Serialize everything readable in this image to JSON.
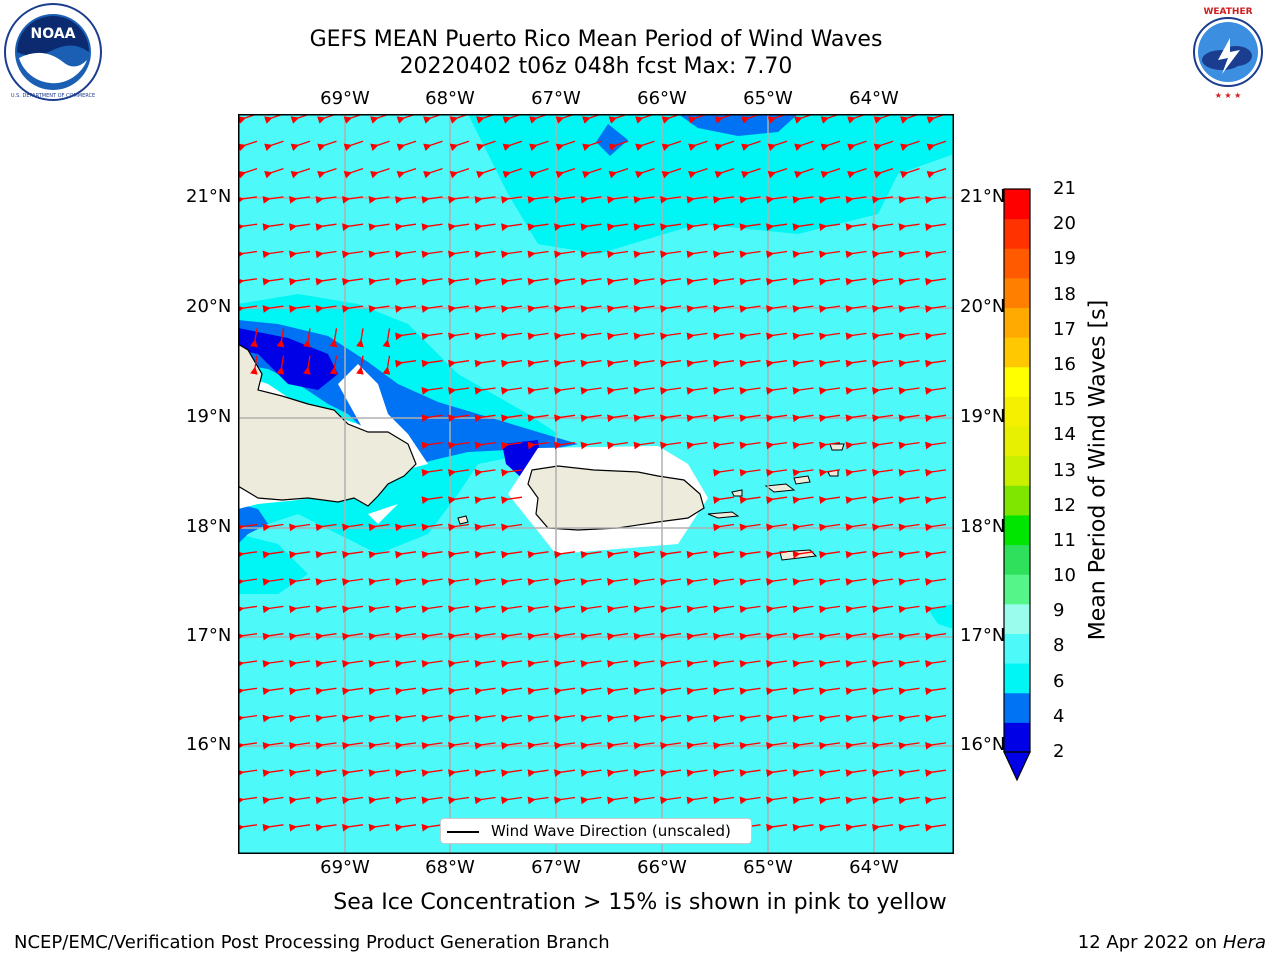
{
  "title": {
    "line1": "GEFS MEAN Puerto Rico Mean Period of Wind Waves",
    "line2": "20220402 t06z 048h fcst   Max: 7.70"
  },
  "map": {
    "lon_ticks": [
      "69°W",
      "68°W",
      "67°W",
      "66°W",
      "65°W",
      "64°W"
    ],
    "lat_ticks": [
      "21°N",
      "20°N",
      "19°N",
      "18°N",
      "17°N",
      "16°N"
    ],
    "background_color": "#4df9f9",
    "land_color": "#ecebdc"
  },
  "legend": {
    "label": "Wind Wave Direction (unscaled)"
  },
  "colorbar": {
    "label": "Mean Period of Wind Waves [s]",
    "ticks": [
      "21",
      "20",
      "19",
      "18",
      "17",
      "16",
      "15",
      "14",
      "13",
      "12",
      "11",
      "10",
      "9",
      "8",
      "6",
      "4",
      "2"
    ],
    "colors": [
      "#0000e6",
      "#0073f5",
      "#00f5f5",
      "#4df9f9",
      "#99fcec",
      "#55f58a",
      "#2ee05c",
      "#00e600",
      "#7fe600",
      "#c8f000",
      "#e6f000",
      "#f5f000",
      "#ffff00",
      "#ffc800",
      "#ffaa00",
      "#ff8000",
      "#ff5a00",
      "#ff3200",
      "#ff0000"
    ]
  },
  "subtitle": "Sea Ice Concentration > 15% is shown in pink to yellow",
  "footer": {
    "left": "NCEP/EMC/Verification Post Processing Product Generation Branch",
    "date": "12 Apr 2022 on",
    "machine": "Hera"
  },
  "logos": {
    "left": "noaa-logo",
    "right": "nws-logo"
  },
  "colors": {
    "arrow": "#ff0000",
    "grid": "#b0b0b0"
  }
}
